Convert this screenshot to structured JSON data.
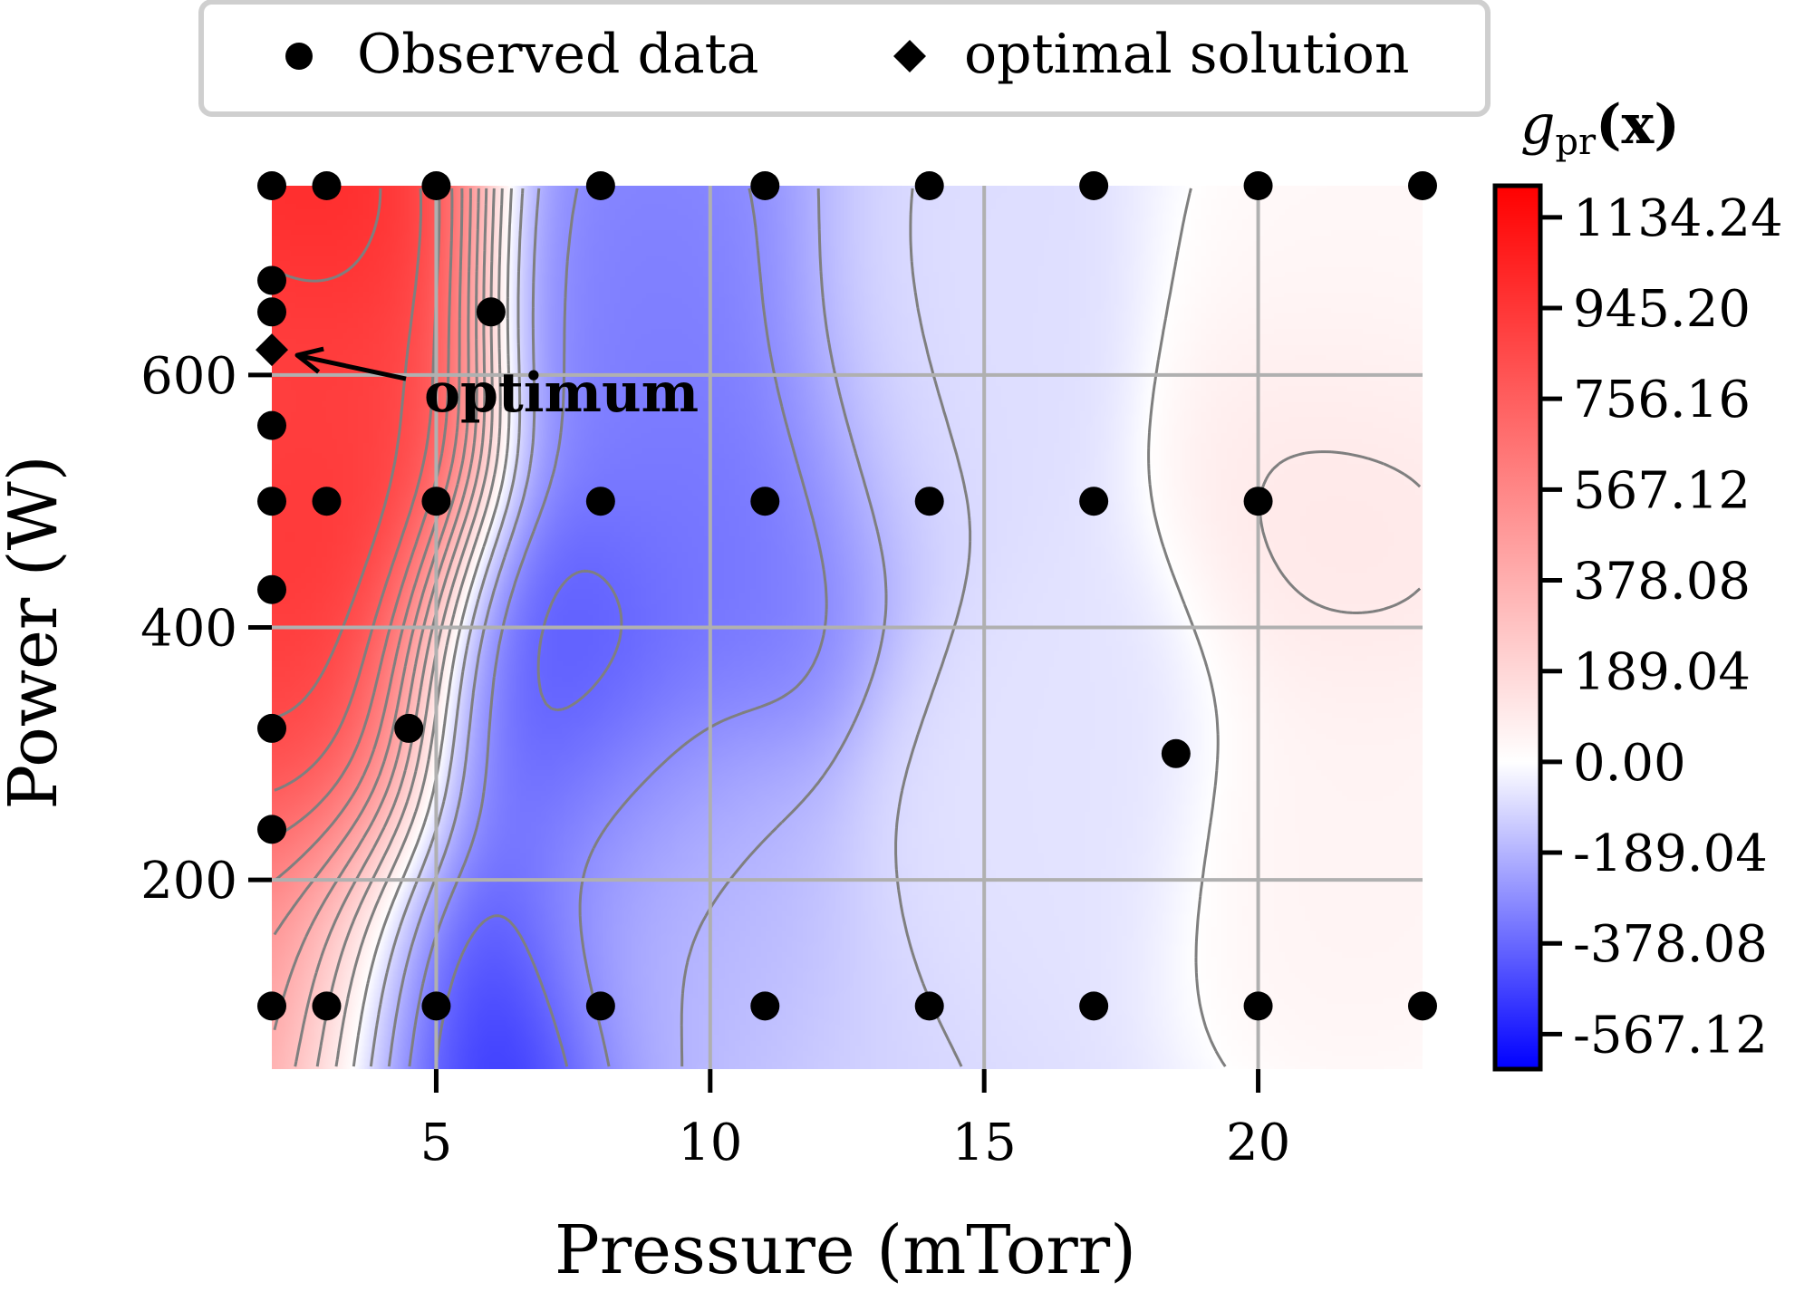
{
  "chart_data": {
    "type": "contour",
    "x_label": "Pressure (mTorr)",
    "y_label": "Power (W)",
    "xlim": [
      2,
      23
    ],
    "ylim": [
      50,
      750
    ],
    "x_ticks": [
      5,
      10,
      15,
      20
    ],
    "y_ticks": [
      200,
      400,
      600
    ],
    "grid": true,
    "legend": {
      "position": "top-center",
      "entries": [
        {
          "marker": "circle",
          "label": "Observed data"
        },
        {
          "marker": "diamond",
          "label": "optimal solution"
        }
      ]
    },
    "colorbar": {
      "title_main": "g",
      "title_sub": "pr",
      "title_arg": "(x)",
      "colormap": [
        "#0000ff",
        "#ffffff",
        "#ff0000"
      ],
      "range": [
        -640,
        1200
      ],
      "ticks": [
        -567.12,
        -378.08,
        -189.04,
        0.0,
        189.04,
        378.08,
        567.12,
        756.16,
        945.2,
        1134.24
      ],
      "tick_labels": [
        "-567.12",
        "-378.08",
        "-189.04",
        "0.00",
        "189.04",
        "378.08",
        "567.12",
        "756.16",
        "945.20",
        "1134.24"
      ]
    },
    "annotation": {
      "text": "optimum",
      "points_to": [
        2,
        620
      ]
    },
    "observed_points": [
      [
        2,
        750
      ],
      [
        3,
        750
      ],
      [
        5,
        750
      ],
      [
        8,
        750
      ],
      [
        11,
        750
      ],
      [
        14,
        750
      ],
      [
        17,
        750
      ],
      [
        20,
        750
      ],
      [
        23,
        750
      ],
      [
        2,
        675
      ],
      [
        2,
        650
      ],
      [
        6,
        650
      ],
      [
        2,
        560
      ],
      [
        2,
        500
      ],
      [
        3,
        500
      ],
      [
        5,
        500
      ],
      [
        8,
        500
      ],
      [
        11,
        500
      ],
      [
        14,
        500
      ],
      [
        17,
        500
      ],
      [
        20,
        500
      ],
      [
        2,
        430
      ],
      [
        2,
        320
      ],
      [
        4.5,
        320
      ],
      [
        18.5,
        300
      ],
      [
        2,
        240
      ],
      [
        2,
        100
      ],
      [
        3,
        100
      ],
      [
        5,
        100
      ],
      [
        8,
        100
      ],
      [
        11,
        100
      ],
      [
        14,
        100
      ],
      [
        17,
        100
      ],
      [
        20,
        100
      ],
      [
        23,
        100
      ]
    ],
    "optimal_point": [
      2,
      620
    ],
    "surface_features": [
      {
        "x": 2.5,
        "y": 720,
        "value": 1134
      },
      {
        "x": 2.5,
        "y": 500,
        "value": 1050
      },
      {
        "x": 2.5,
        "y": 320,
        "value": 950
      },
      {
        "x": 2.2,
        "y": 610,
        "value": 820
      },
      {
        "x": 2.3,
        "y": 120,
        "value": 600
      },
      {
        "x": 5.0,
        "y": 100,
        "value": -620
      },
      {
        "x": 7.0,
        "y": 330,
        "value": -470
      },
      {
        "x": 9.0,
        "y": 660,
        "value": -330
      },
      {
        "x": 10.5,
        "y": 500,
        "value": -360
      },
      {
        "x": 8.5,
        "y": 200,
        "value": -170
      },
      {
        "x": 14.0,
        "y": 600,
        "value": -80
      },
      {
        "x": 16.5,
        "y": 300,
        "value": -70
      },
      {
        "x": 21.5,
        "y": 500,
        "value": 120
      },
      {
        "x": 21.5,
        "y": 220,
        "value": 60
      },
      {
        "x": 22.0,
        "y": 700,
        "value": 40
      }
    ]
  }
}
